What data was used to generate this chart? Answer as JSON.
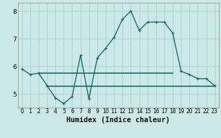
{
  "title": "",
  "xlabel": "Humidex (Indice chaleur)",
  "bg_color": "#cce8e8",
  "grid_color": "#aacccc",
  "line_color": "#1a6b6b",
  "x_main": [
    0,
    1,
    2,
    3,
    4,
    5,
    6,
    7,
    8,
    9,
    10,
    11,
    12,
    13,
    14,
    15,
    16,
    17,
    18,
    19,
    20,
    21,
    22,
    23
  ],
  "y_main": [
    5.9,
    5.7,
    5.75,
    5.3,
    4.85,
    4.65,
    4.9,
    6.4,
    4.82,
    6.3,
    6.65,
    7.05,
    7.7,
    8.0,
    7.3,
    7.6,
    7.6,
    7.6,
    7.2,
    5.82,
    5.7,
    5.55,
    5.55,
    5.3
  ],
  "hline1_x": [
    2,
    18
  ],
  "hline1_y": 5.75,
  "hline2_x": [
    3,
    23
  ],
  "hline2_y": 5.27,
  "xlim": [
    -0.5,
    23.5
  ],
  "ylim": [
    4.5,
    8.3
  ],
  "yticks": [
    5,
    6,
    7,
    8
  ],
  "xticks": [
    0,
    1,
    2,
    3,
    4,
    5,
    6,
    7,
    8,
    9,
    10,
    11,
    12,
    13,
    14,
    15,
    16,
    17,
    18,
    19,
    20,
    21,
    22,
    23
  ]
}
